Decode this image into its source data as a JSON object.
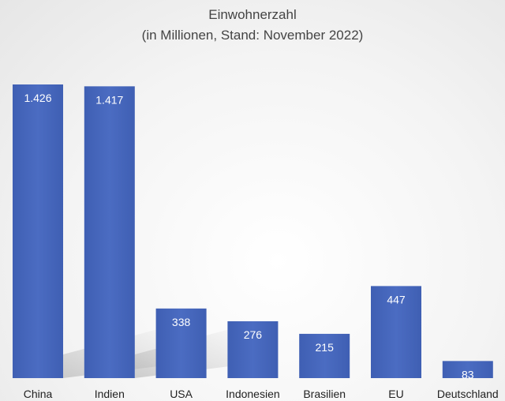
{
  "chart_data": {
    "type": "bar",
    "title": "Einwohnerzahl",
    "subtitle": "(in Millionen, Stand: November 2022)",
    "categories": [
      "China",
      "Indien",
      "USA",
      "Indonesien",
      "Brasilien",
      "EU",
      "Deutschland"
    ],
    "values": [
      1426,
      1417,
      338,
      276,
      215,
      447,
      83
    ],
    "value_labels": [
      "1.426",
      "1.417",
      "338",
      "276",
      "215",
      "447",
      "83"
    ],
    "xlabel": "",
    "ylabel": "",
    "ylim": [
      0,
      1426
    ],
    "grid": false,
    "legend": "none",
    "bar_color": "#4a69bd",
    "bar_color_dark": "#3d5aa8"
  }
}
